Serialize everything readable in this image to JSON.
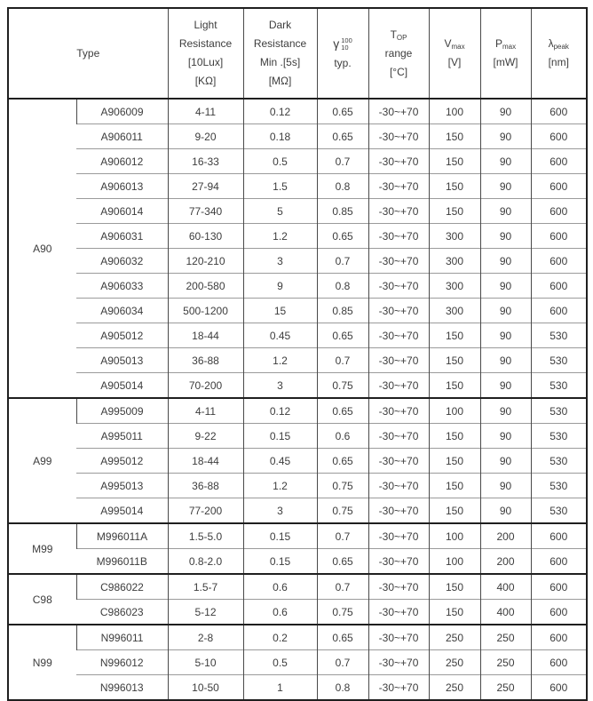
{
  "table": {
    "header": {
      "type": "Type",
      "light_lines": [
        "Light",
        "Resistance",
        "[10Lux]",
        "[KΩ]"
      ],
      "dark_lines": [
        "Dark",
        "Resistance",
        "Min .[5s]",
        "[MΩ]"
      ],
      "gamma": {
        "symbol": "γ",
        "sup": "100",
        "sub": "10",
        "line2": "typ."
      },
      "top": {
        "base": "T",
        "sub": "OP",
        "line2": "range",
        "line3": "[°C]"
      },
      "vmax": {
        "base": "V",
        "sub": "max",
        "line2": "[V]"
      },
      "pmax": {
        "base": "P",
        "sub": "max",
        "line2": "[mW]"
      },
      "lpeak": {
        "base": "λ",
        "sub": "peak",
        "line2": "[nm]"
      }
    },
    "column_names": [
      "part-number",
      "light-resistance",
      "dark-resistance",
      "gamma-typ",
      "top-range",
      "v-max",
      "p-max",
      "lambda-peak"
    ],
    "border_colors": {
      "outer": "#1f1f1f",
      "vertical": "#4a4a4a",
      "horizontal": "#9b9b9b"
    },
    "groups": [
      {
        "name": "A90",
        "rows": [
          [
            "A906009",
            "4-11",
            "0.12",
            "0.65",
            "-30~+70",
            "100",
            "90",
            "600"
          ],
          [
            "A906011",
            "9-20",
            "0.18",
            "0.65",
            "-30~+70",
            "150",
            "90",
            "600"
          ],
          [
            "A906012",
            "16-33",
            "0.5",
            "0.7",
            "-30~+70",
            "150",
            "90",
            "600"
          ],
          [
            "A906013",
            "27-94",
            "1.5",
            "0.8",
            "-30~+70",
            "150",
            "90",
            "600"
          ],
          [
            "A906014",
            "77-340",
            "5",
            "0.85",
            "-30~+70",
            "150",
            "90",
            "600"
          ],
          [
            "A906031",
            "60-130",
            "1.2",
            "0.65",
            "-30~+70",
            "300",
            "90",
            "600"
          ],
          [
            "A906032",
            "120-210",
            "3",
            "0.7",
            "-30~+70",
            "300",
            "90",
            "600"
          ],
          [
            "A906033",
            "200-580",
            "9",
            "0.8",
            "-30~+70",
            "300",
            "90",
            "600"
          ],
          [
            "A906034",
            "500-1200",
            "15",
            "0.85",
            "-30~+70",
            "300",
            "90",
            "600"
          ],
          [
            "A905012",
            "18-44",
            "0.45",
            "0.65",
            "-30~+70",
            "150",
            "90",
            "530"
          ],
          [
            "A905013",
            "36-88",
            "1.2",
            "0.7",
            "-30~+70",
            "150",
            "90",
            "530"
          ],
          [
            "A905014",
            "70-200",
            "3",
            "0.75",
            "-30~+70",
            "150",
            "90",
            "530"
          ]
        ]
      },
      {
        "name": "A99",
        "rows": [
          [
            "A995009",
            "4-11",
            "0.12",
            "0.65",
            "-30~+70",
            "100",
            "90",
            "530"
          ],
          [
            "A995011",
            "9-22",
            "0.15",
            "0.6",
            "-30~+70",
            "150",
            "90",
            "530"
          ],
          [
            "A995012",
            "18-44",
            "0.45",
            "0.65",
            "-30~+70",
            "150",
            "90",
            "530"
          ],
          [
            "A995013",
            "36-88",
            "1.2",
            "0.75",
            "-30~+70",
            "150",
            "90",
            "530"
          ],
          [
            "A995014",
            "77-200",
            "3",
            "0.75",
            "-30~+70",
            "150",
            "90",
            "530"
          ]
        ]
      },
      {
        "name": "M99",
        "rows": [
          [
            "M996011A",
            "1.5-5.0",
            "0.15",
            "0.7",
            "-30~+70",
            "100",
            "200",
            "600"
          ],
          [
            "M996011B",
            "0.8-2.0",
            "0.15",
            "0.65",
            "-30~+70",
            "100",
            "200",
            "600"
          ]
        ]
      },
      {
        "name": "C98",
        "rows": [
          [
            "C986022",
            "1.5-7",
            "0.6",
            "0.7",
            "-30~+70",
            "150",
            "400",
            "600"
          ],
          [
            "C986023",
            "5-12",
            "0.6",
            "0.75",
            "-30~+70",
            "150",
            "400",
            "600"
          ]
        ]
      },
      {
        "name": "N99",
        "rows": [
          [
            "N996011",
            "2-8",
            "0.2",
            "0.65",
            "-30~+70",
            "250",
            "250",
            "600"
          ],
          [
            "N996012",
            "5-10",
            "0.5",
            "0.7",
            "-30~+70",
            "250",
            "250",
            "600"
          ],
          [
            "N996013",
            "10-50",
            "1",
            "0.8",
            "-30~+70",
            "250",
            "250",
            "600"
          ]
        ]
      }
    ]
  }
}
